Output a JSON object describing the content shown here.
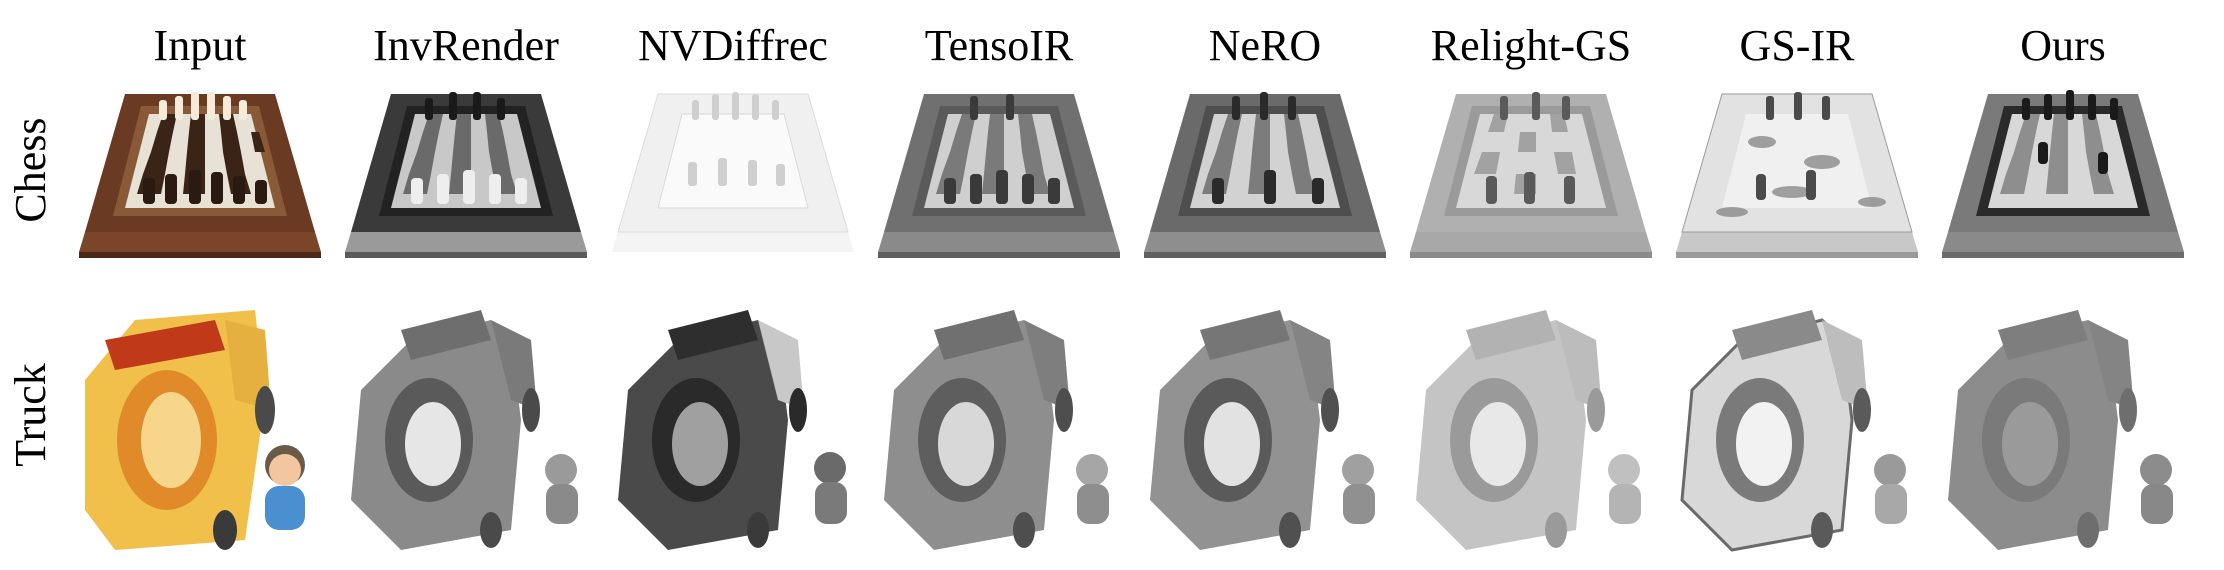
{
  "columns": [
    "Input",
    "InvRender",
    "NVDiffrec",
    "TensoIR",
    "NeRO",
    "Relight-GS",
    "GS-IR",
    "Ours"
  ],
  "rows": [
    "Chess",
    "Truck"
  ],
  "colors": {
    "input_wood": "#6b3a22",
    "input_truck_yellow": "#f0c04a",
    "input_truck_red": "#c03a1a",
    "figure_blue": "#4a8fd0"
  }
}
